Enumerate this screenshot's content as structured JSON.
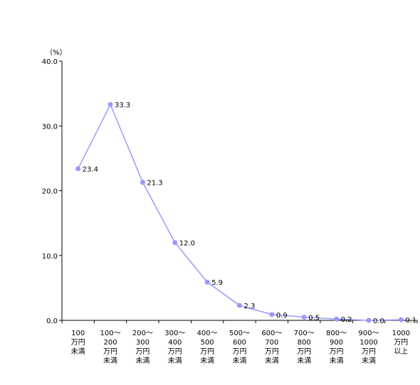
{
  "chart_data": {
    "type": "line",
    "unit_label": "（%）",
    "y_ticks": [
      "0.0",
      "10.0",
      "20.0",
      "30.0",
      "40.0"
    ],
    "ylim": [
      0,
      40
    ],
    "categories": [
      [
        "100",
        "万円",
        "未満"
      ],
      [
        "100～",
        "200",
        "万円",
        "未満"
      ],
      [
        "200～",
        "300",
        "万円",
        "未満"
      ],
      [
        "300～",
        "400",
        "万円",
        "未満"
      ],
      [
        "400～",
        "500",
        "万円",
        "未満"
      ],
      [
        "500～",
        "600",
        "万円",
        "未満"
      ],
      [
        "600～",
        "700",
        "万円",
        "未満"
      ],
      [
        "700～",
        "800",
        "万円",
        "未満"
      ],
      [
        "800～",
        "900",
        "万円",
        "未満"
      ],
      [
        "900～",
        "1000",
        "万円",
        "未満"
      ],
      [
        "1000",
        "万円",
        "以上"
      ]
    ],
    "values": [
      23.4,
      33.3,
      21.3,
      12.0,
      5.9,
      2.3,
      0.9,
      0.5,
      0.2,
      0.0,
      0.1
    ],
    "value_labels": [
      "23.4",
      "33.3",
      "21.3",
      "12.0",
      "5.9",
      "2.3",
      "0.9",
      "0.5",
      "0.2",
      "0.0",
      "0.1"
    ],
    "line_color": "#9999ff",
    "grid": false
  }
}
